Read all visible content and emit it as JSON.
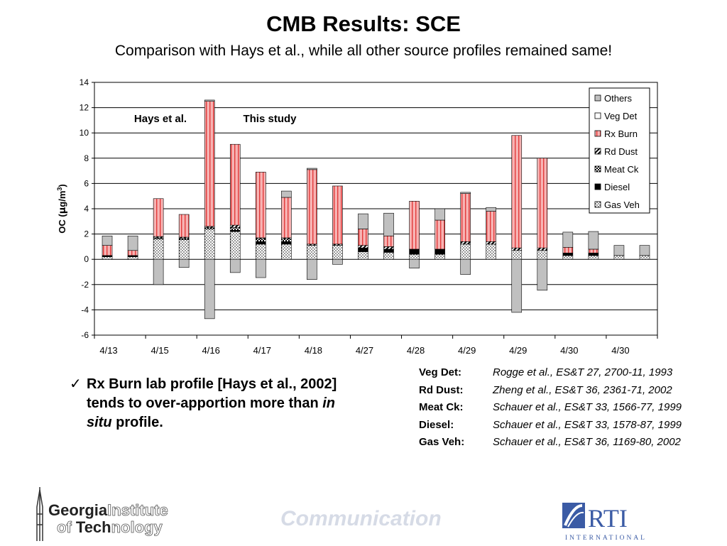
{
  "slide": {
    "title": "CMB Results: SCE",
    "subtitle": "Comparison with Hays et al., while all other source profiles remained same!"
  },
  "annotations": {
    "left": "Hays et al.",
    "right": "This study"
  },
  "chart_data": {
    "type": "bar",
    "stacked": true,
    "ylabel": "OC  (μg/m³)",
    "xlabel": "",
    "ylim": [
      -6,
      14
    ],
    "yticks": [
      14,
      12,
      10,
      8,
      6,
      4,
      2,
      0,
      -2,
      -4,
      -6
    ],
    "grid": true,
    "legend_position": "right-top",
    "categories": [
      "4/13",
      "4/13",
      "4/15",
      "4/15",
      "4/16",
      "4/16",
      "4/17",
      "4/17",
      "4/18",
      "4/18",
      "4/27",
      "4/27",
      "4/28",
      "4/28",
      "4/29",
      "4/29",
      "4/29",
      "4/29",
      "4/30",
      "4/30",
      "4/30",
      "4/30"
    ],
    "tick_labels": [
      "4/13",
      "4/15",
      "4/16",
      "4/17",
      "4/18",
      "4/27",
      "4/28",
      "4/29",
      "4/29",
      "4/30",
      "4/30"
    ],
    "series": [
      {
        "name": "Gas Veh",
        "pattern": "dots",
        "values": [
          0.2,
          0.2,
          1.6,
          1.55,
          2.4,
          2.2,
          1.2,
          1.2,
          1.1,
          1.1,
          0.6,
          0.55,
          0.4,
          0.4,
          1.2,
          1.2,
          0.7,
          0.7,
          0.3,
          0.3,
          0.3,
          0.3
        ]
      },
      {
        "name": "Diesel",
        "color": "#000000",
        "values": [
          0.1,
          0.1,
          0.0,
          0.0,
          0.0,
          0.1,
          0.2,
          0.2,
          0.0,
          0.0,
          0.3,
          0.25,
          0.4,
          0.4,
          0.0,
          0.0,
          0.0,
          0.0,
          0.2,
          0.2,
          0.0,
          0.0
        ]
      },
      {
        "name": "Meat Ck",
        "pattern": "checks",
        "values": [
          0.0,
          0.0,
          0.1,
          0.1,
          0.1,
          0.2,
          0.2,
          0.2,
          0.0,
          0.0,
          0.0,
          0.0,
          0.0,
          0.0,
          0.0,
          0.0,
          0.0,
          0.0,
          0.0,
          0.0,
          0.0,
          0.0
        ]
      },
      {
        "name": "Rd Dust",
        "pattern": "diagonal",
        "values": [
          0.0,
          0.0,
          0.1,
          0.1,
          0.1,
          0.2,
          0.1,
          0.1,
          0.1,
          0.1,
          0.2,
          0.2,
          0.0,
          0.0,
          0.2,
          0.2,
          0.2,
          0.2,
          0.0,
          0.0,
          0.0,
          0.0
        ]
      },
      {
        "name": "Rx Burn",
        "color": "#f4a3a3",
        "values": [
          0.8,
          0.4,
          3.0,
          1.8,
          9.9,
          6.4,
          5.2,
          3.2,
          5.9,
          4.6,
          1.3,
          0.85,
          3.8,
          2.3,
          3.8,
          2.4,
          8.9,
          7.1,
          0.45,
          0.3,
          0.0,
          0.0
        ]
      },
      {
        "name": "Veg Det",
        "color": "#ffffff",
        "values": [
          0.0,
          0.0,
          0.0,
          0.0,
          0.0,
          0.0,
          0.0,
          0.0,
          0.0,
          0.0,
          0.0,
          0.0,
          0.0,
          0.0,
          0.0,
          0.0,
          0.0,
          0.0,
          0.0,
          0.0,
          0.0,
          0.0
        ]
      },
      {
        "name": "Others",
        "color": "#c0c0c0",
        "values": [
          0.75,
          1.15,
          0.0,
          0.0,
          0.1,
          0.0,
          0.0,
          0.5,
          0.1,
          0.0,
          1.2,
          1.8,
          0.0,
          0.9,
          0.1,
          0.3,
          0.0,
          0.0,
          1.2,
          1.4,
          0.8,
          0.8
        ]
      }
    ],
    "negative_others": [
      0.0,
      0.0,
      -2.0,
      -0.65,
      -4.7,
      -1.05,
      -1.45,
      0.0,
      -1.6,
      -0.4,
      0.0,
      0.0,
      -0.7,
      0.0,
      -1.2,
      0.0,
      -4.2,
      -2.45,
      0.0,
      0.0,
      0.0,
      0.0
    ]
  },
  "bullet": {
    "check": "✓",
    "pre": "Rx Burn lab profile [Hays et al., 2002] tends to over-apportion more than ",
    "em": "in situ",
    "post": " profile."
  },
  "references": [
    {
      "key": "Veg Det",
      "cite": "Rogge et al., ES&T 27, 2700-11, 1993"
    },
    {
      "key": "Rd Dust",
      "cite": "Zheng et al., ES&T 36, 2361-71, 2002"
    },
    {
      "key": "Meat Ck",
      "cite": "Schauer et al., ES&T 33, 1566-77, 1999"
    },
    {
      "key": "Diesel",
      "cite": "Schauer et al., ES&T 33, 1578-87, 1999"
    },
    {
      "key": "Gas Veh",
      "cite": "Schauer et al., ES&T 36, 1169-80, 2002"
    }
  ],
  "footer": {
    "logo_left": {
      "line1a": "Georgia",
      "line1b": "Institute",
      "line2a": "of ",
      "line2b": "Tech",
      "line2c": "nology"
    },
    "center_text": "Communication",
    "logo_right": {
      "mark": "RTI",
      "sub": "INTERNATIONAL"
    }
  }
}
